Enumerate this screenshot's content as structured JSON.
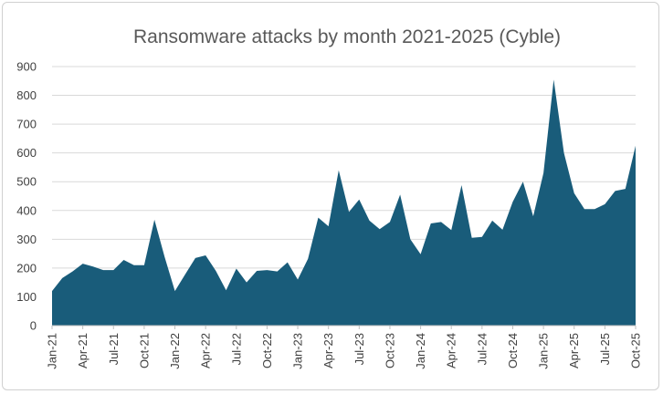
{
  "chart_data": {
    "type": "area",
    "title": "Ransomware attacks by month 2021-2025 (Cyble)",
    "xlabel": "",
    "ylabel": "",
    "ylim": [
      0,
      900
    ],
    "yticks": [
      0,
      100,
      200,
      300,
      400,
      500,
      600,
      700,
      800,
      900
    ],
    "grid": true,
    "legend": "none",
    "color": "#195c7a",
    "x_tick_labels": [
      "Jan-21",
      "Apr-21",
      "Jul-21",
      "Oct-21",
      "Jan-22",
      "Apr-22",
      "Jul-22",
      "Oct-22",
      "Jan-23",
      "Apr-23",
      "Jul-23",
      "Oct-23",
      "Jan-24",
      "Apr-24",
      "Jul-24",
      "Oct-24",
      "Jan-25",
      "Apr-25",
      "Jul-25",
      "Oct-25"
    ],
    "x": [
      "Jan-21",
      "Feb-21",
      "Mar-21",
      "Apr-21",
      "May-21",
      "Jun-21",
      "Jul-21",
      "Aug-21",
      "Sep-21",
      "Oct-21",
      "Nov-21",
      "Dec-21",
      "Jan-22",
      "Feb-22",
      "Mar-22",
      "Apr-22",
      "May-22",
      "Jun-22",
      "Jul-22",
      "Aug-22",
      "Sep-22",
      "Oct-22",
      "Nov-22",
      "Dec-22",
      "Jan-23",
      "Feb-23",
      "Mar-23",
      "Apr-23",
      "May-23",
      "Jun-23",
      "Jul-23",
      "Aug-23",
      "Sep-23",
      "Oct-23",
      "Nov-23",
      "Dec-23",
      "Jan-24",
      "Feb-24",
      "Mar-24",
      "Apr-24",
      "May-24",
      "Jun-24",
      "Jul-24",
      "Aug-24",
      "Sep-24",
      "Oct-24",
      "Nov-24",
      "Dec-24",
      "Jan-25",
      "Feb-25",
      "Mar-25",
      "Apr-25",
      "May-25",
      "Jun-25",
      "Jul-25",
      "Aug-25",
      "Sep-25",
      "Oct-25"
    ],
    "values": [
      120,
      165,
      188,
      215,
      205,
      193,
      193,
      228,
      210,
      210,
      368,
      238,
      120,
      178,
      235,
      244,
      190,
      123,
      198,
      150,
      190,
      193,
      188,
      220,
      160,
      232,
      375,
      345,
      540,
      395,
      438,
      365,
      335,
      360,
      455,
      300,
      248,
      355,
      360,
      332,
      488,
      305,
      308,
      365,
      333,
      430,
      500,
      380,
      530,
      855,
      600,
      460,
      405,
      405,
      422,
      468,
      475,
      625
    ]
  }
}
